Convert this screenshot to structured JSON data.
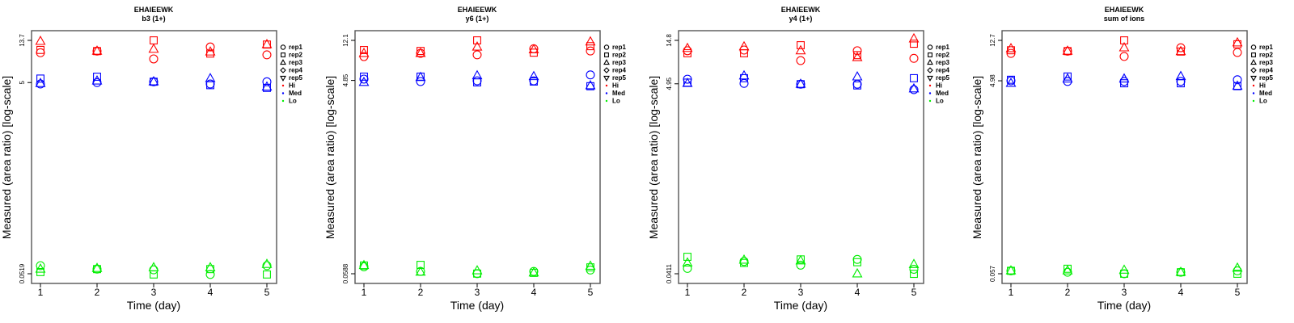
{
  "chart_data": [
    {
      "type": "scatter",
      "title": "EHAIEEWK",
      "subtitle": "b3 (1+)",
      "xlabel": "Time (day)",
      "ylabel": "Measured (area ratio) [log-scale]",
      "y_scale": "log",
      "x_ticks": [
        1,
        2,
        3,
        4,
        5
      ],
      "y_ticks": [
        0.0519,
        5,
        13.7
      ],
      "y_tick_labels": [
        "0.0519",
        "5",
        "13.7"
      ],
      "legend": {
        "position": "right",
        "reps": [
          "rep1",
          "rep2",
          "rep3",
          "rep4",
          "rep5"
        ],
        "groups": [
          "Hi",
          "Med",
          "Lo"
        ]
      },
      "series": [
        {
          "name": "Hi",
          "color": "#ff0000",
          "rep1": [
            10.2,
            10.6,
            8.8,
            11.7,
            9.7
          ],
          "rep2": [
            10.9,
            10.6,
            13.7,
            10.0,
            12.4
          ],
          "rep3": [
            13.4,
            10.6,
            11.1,
            10.4,
            12.4
          ]
        },
        {
          "name": "Med",
          "color": "#0000ff",
          "rep1": [
            4.83,
            5.0,
            5.1,
            4.83,
            5.1
          ],
          "rep2": [
            5.5,
            5.75,
            5.1,
            4.7,
            4.4
          ],
          "rep3": [
            4.9,
            5.2,
            5.1,
            5.5,
            4.5
          ]
        },
        {
          "name": "Lo",
          "color": "#00ee00",
          "rep1": [
            0.063,
            0.058,
            0.057,
            0.051,
            0.063
          ],
          "rep2": [
            0.054,
            0.058,
            0.051,
            0.058,
            0.051
          ],
          "rep3": [
            0.058,
            0.059,
            0.06,
            0.06,
            0.065
          ]
        }
      ]
    },
    {
      "type": "scatter",
      "title": "EHAIEEWK",
      "subtitle": "y6 (1+)",
      "xlabel": "Time (day)",
      "ylabel": "Measured (area ratio) [log-scale]",
      "y_scale": "log",
      "x_ticks": [
        1,
        2,
        3,
        4,
        5
      ],
      "y_ticks": [
        0.0588,
        4.85,
        12.1
      ],
      "y_tick_labels": [
        "0.0588",
        "4.85",
        "12.1"
      ],
      "legend": {
        "position": "right",
        "reps": [
          "rep1",
          "rep2",
          "rep3",
          "rep4",
          "rep5"
        ],
        "groups": [
          "Hi",
          "Med",
          "Lo"
        ]
      },
      "series": [
        {
          "name": "Hi",
          "color": "#ff0000",
          "rep1": [
            8.36,
            9.0,
            8.7,
            10.0,
            9.5
          ],
          "rep2": [
            9.7,
            9.5,
            12.1,
            9.14,
            10.6
          ],
          "rep3": [
            9.0,
            9.0,
            10.4,
            9.8,
            11.7
          ]
        },
        {
          "name": "Med",
          "color": "#0000ff",
          "rep1": [
            5.0,
            4.73,
            4.8,
            4.8,
            5.5
          ],
          "rep2": [
            5.29,
            5.29,
            4.64,
            4.73,
            4.25
          ],
          "rep3": [
            4.64,
            5.2,
            5.4,
            5.3,
            4.3
          ]
        },
        {
          "name": "Lo",
          "color": "#00ee00",
          "rep1": [
            0.069,
            0.062,
            0.059,
            0.062,
            0.064
          ],
          "rep2": [
            0.071,
            0.072,
            0.059,
            0.06,
            0.068
          ],
          "rep3": [
            0.071,
            0.061,
            0.063,
            0.06,
            0.07
          ]
        }
      ]
    },
    {
      "type": "scatter",
      "title": "EHAIEEWK",
      "subtitle": "y4 (1+)",
      "xlabel": "Time (day)",
      "ylabel": "Measured (area ratio) [log-scale]",
      "y_scale": "log",
      "x_ticks": [
        1,
        2,
        3,
        4,
        5
      ],
      "y_ticks": [
        0.0411,
        4.95,
        14.8
      ],
      "y_tick_labels": [
        "0.0411",
        "4.95",
        "14.8"
      ],
      "legend": {
        "position": "right",
        "reps": [
          "rep1",
          "rep2",
          "rep3",
          "rep4",
          "rep5"
        ],
        "groups": [
          "Hi",
          "Med",
          "Lo"
        ]
      },
      "series": [
        {
          "name": "Hi",
          "color": "#ff0000",
          "rep1": [
            11.4,
            11.6,
            8.9,
            11.4,
            9.4
          ],
          "rep2": [
            10.7,
            10.7,
            13.1,
            10.2,
            13.6
          ],
          "rep3": [
            12.1,
            12.6,
            11.4,
            9.6,
            15.4
          ]
        },
        {
          "name": "Med",
          "color": "#0000ff",
          "rep1": [
            5.56,
            5.0,
            4.9,
            4.9,
            4.27
          ],
          "rep2": [
            5.1,
            5.7,
            4.9,
            4.75,
            5.7
          ],
          "rep3": [
            5.0,
            6.05,
            4.9,
            5.9,
            4.36
          ]
        },
        {
          "name": "Lo",
          "color": "#00ee00",
          "rep1": [
            0.047,
            0.056,
            0.051,
            0.059,
            0.046
          ],
          "rep2": [
            0.063,
            0.054,
            0.059,
            0.055,
            0.041
          ],
          "rep3": [
            0.054,
            0.058,
            0.057,
            0.041,
            0.052
          ]
        }
      ]
    },
    {
      "type": "scatter",
      "title": "EHAIEEWK",
      "subtitle": "sum of ions",
      "xlabel": "Time (day)",
      "ylabel": "Measured (area ratio) [log-scale]",
      "y_scale": "log",
      "x_ticks": [
        1,
        2,
        3,
        4,
        5
      ],
      "y_ticks": [
        0.057,
        4.98,
        12.7
      ],
      "y_tick_labels": [
        "0.057",
        "4.98",
        "12.7"
      ],
      "legend": {
        "position": "right",
        "reps": [
          "rep1",
          "rep2",
          "rep3",
          "rep4",
          "rep5"
        ],
        "groups": [
          "Hi",
          "Med",
          "Lo"
        ]
      },
      "series": [
        {
          "name": "Hi",
          "color": "#ff0000",
          "rep1": [
            9.4,
            9.9,
            8.75,
            10.7,
            9.6
          ],
          "rep2": [
            10.1,
            9.9,
            12.7,
            9.8,
            11.6
          ],
          "rep3": [
            10.5,
            9.9,
            10.7,
            9.8,
            12.0
          ]
        },
        {
          "name": "Med",
          "color": "#0000ff",
          "rep1": [
            4.98,
            4.9,
            4.9,
            4.9,
            5.1
          ],
          "rep2": [
            5.1,
            5.5,
            4.7,
            4.7,
            4.4
          ],
          "rep3": [
            4.7,
            5.2,
            5.2,
            5.5,
            4.4
          ]
        },
        {
          "name": "Lo",
          "color": "#00ee00",
          "rep1": [
            0.061,
            0.059,
            0.057,
            0.059,
            0.061
          ],
          "rep2": [
            0.061,
            0.064,
            0.057,
            0.059,
            0.057
          ],
          "rep3": [
            0.061,
            0.061,
            0.062,
            0.059,
            0.065
          ]
        }
      ]
    }
  ]
}
